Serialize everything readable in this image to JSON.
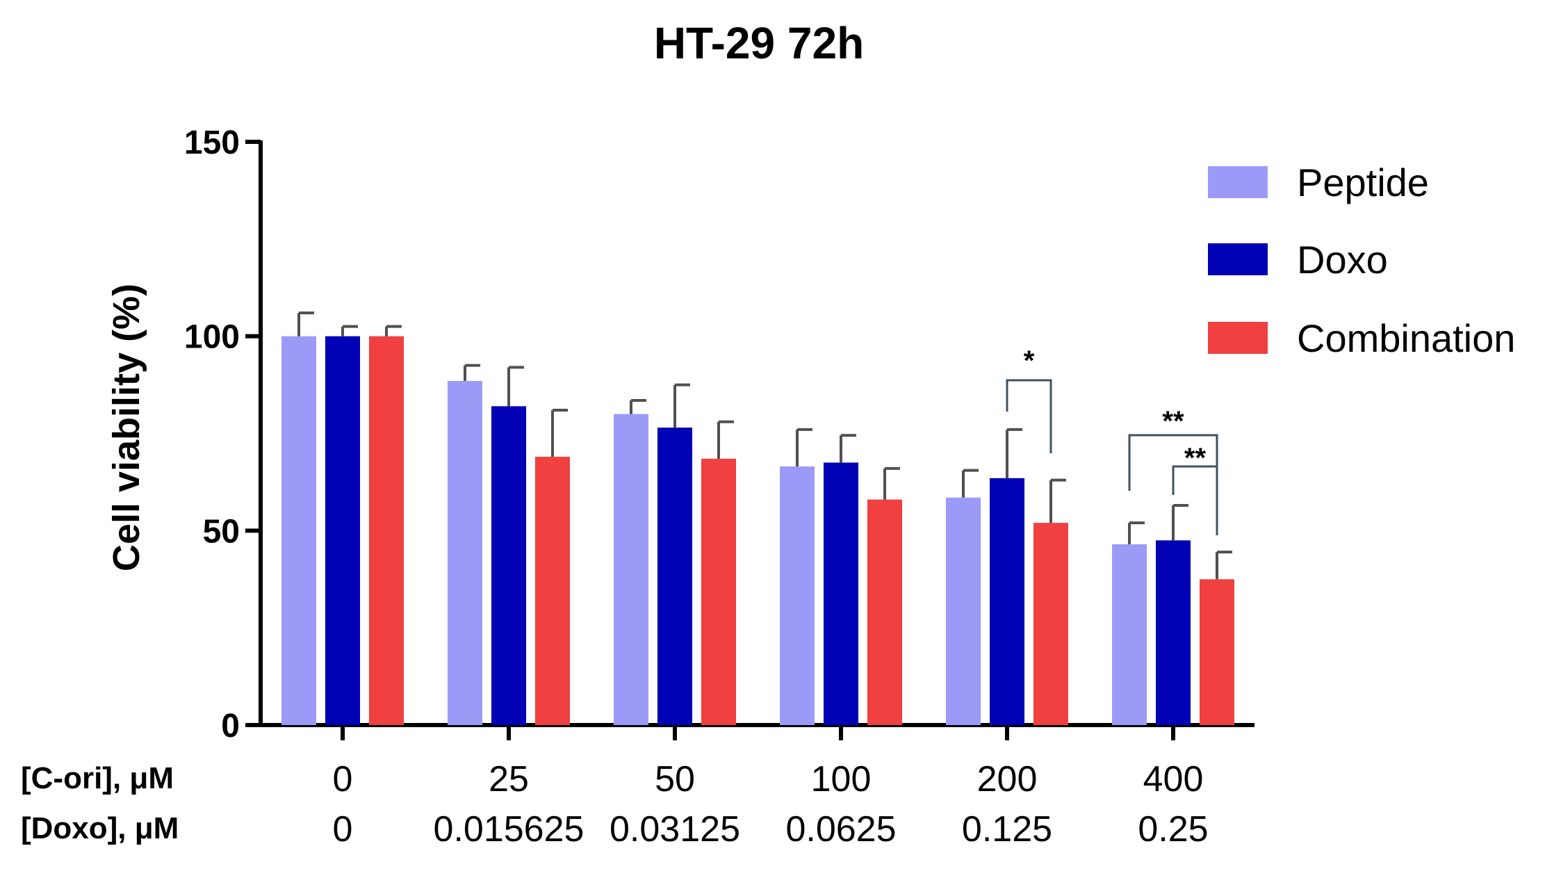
{
  "chart_data": {
    "type": "bar",
    "title": "HT-29 72h",
    "ylabel": "Cell viability (%)",
    "ylim": [
      0,
      150
    ],
    "yticks": [
      "0",
      "50",
      "100",
      "150"
    ],
    "categories": [
      "0",
      "25",
      "50",
      "100",
      "200",
      "400"
    ],
    "category_rows": [
      {
        "label": "[C-ori], μM",
        "values": [
          "0",
          "25",
          "50",
          "100",
          "200",
          "400"
        ]
      },
      {
        "label": "[Doxo], μM",
        "values": [
          "0",
          "0.015625",
          "0.03125",
          "0.0625",
          "0.125",
          "0.25"
        ]
      }
    ],
    "series": [
      {
        "name": "Peptide",
        "color": "#9b9bf7",
        "values": [
          100,
          88.5,
          80,
          66.5,
          58.5,
          46.5
        ],
        "errors": [
          6,
          4,
          3.5,
          9.5,
          7,
          5.5
        ]
      },
      {
        "name": "Doxo",
        "color": "#0000b4",
        "values": [
          100,
          82,
          76.5,
          67.5,
          63.5,
          47.5
        ],
        "errors": [
          2.5,
          10,
          11,
          7,
          12.5,
          9
        ]
      },
      {
        "name": "Combination",
        "color": "#f04040",
        "values": [
          100,
          69,
          68.5,
          58,
          52,
          37.5
        ],
        "errors": [
          2.5,
          12,
          9.5,
          8,
          11,
          7
        ]
      }
    ],
    "significance": [
      {
        "label": "*",
        "category": 4,
        "from_series": 1,
        "to_series": 2
      },
      {
        "label": "**",
        "category": 5,
        "from_series": 0,
        "to_series": 2
      },
      {
        "label": "**",
        "category": 5,
        "from_series": 1,
        "to_series": 2
      }
    ],
    "legend_position": "top-right",
    "grid": false
  }
}
